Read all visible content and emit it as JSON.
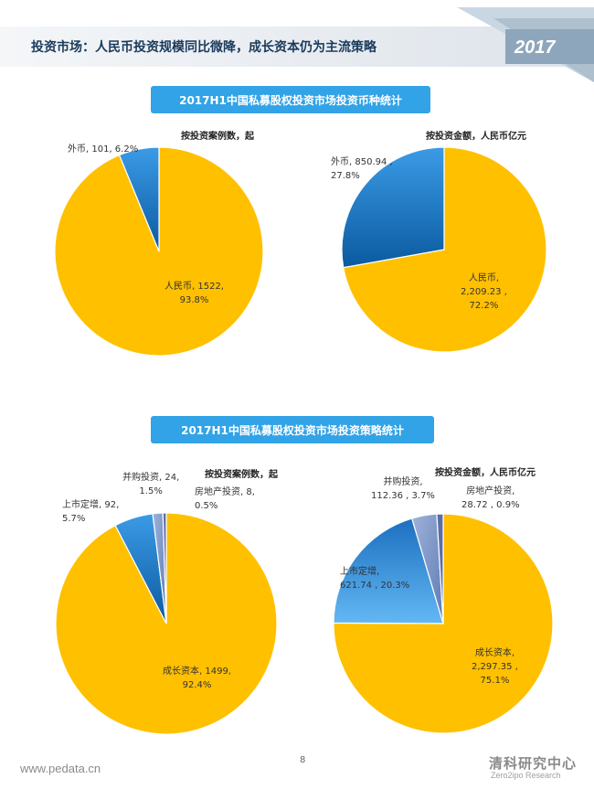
{
  "header": {
    "title": "投资市场：人民币投资规模同比微降，成长资本仍为主流策略",
    "year": "2017"
  },
  "section1": {
    "banner": "2017H1中国私募股权投资市场投资币种统计"
  },
  "section2": {
    "banner": "2017H1中国私募股权投资市场投资策略统计"
  },
  "colors": {
    "yellow": "#ffc000",
    "blue_dark": "#0b5fa5",
    "blue_light": "#4aa6ea",
    "slate": "#7f97c9",
    "banner": "#32a3e6"
  },
  "chart_data": [
    {
      "type": "pie",
      "title": "按投资案例数，起",
      "series": [
        {
          "values": [
            1522,
            101
          ]
        }
      ],
      "categories": [
        "人民币",
        "外币"
      ],
      "labels": [
        {
          "lines": [
            "人民币, 1522,",
            "93.8%"
          ]
        },
        {
          "lines": [
            "外币, 101, 6.2%"
          ]
        }
      ]
    },
    {
      "type": "pie",
      "title": "按投资金额，人民币亿元",
      "series": [
        {
          "values": [
            2209.23,
            850.94
          ]
        }
      ],
      "categories": [
        "人民币",
        "外币"
      ],
      "labels": [
        {
          "lines": [
            "人民币,",
            "2,209.23 ,",
            "72.2%"
          ]
        },
        {
          "lines": [
            "外币,  850.94 ,",
            "27.8%"
          ]
        }
      ]
    },
    {
      "type": "pie",
      "title": "按投资案例数，起",
      "series": [
        {
          "values": [
            1499,
            92,
            24,
            8
          ]
        }
      ],
      "categories": [
        "成长资本",
        "上市定增",
        "并购投资",
        "房地产投资"
      ],
      "labels": [
        {
          "lines": [
            "成长资本, 1499,",
            "92.4%"
          ]
        },
        {
          "lines": [
            "上市定增, 92,",
            "5.7%"
          ]
        },
        {
          "lines": [
            "并购投资, 24,",
            "1.5%"
          ]
        },
        {
          "lines": [
            "房地产投资, 8,",
            "0.5%"
          ]
        }
      ]
    },
    {
      "type": "pie",
      "title": "按投资金额，人民币亿元",
      "series": [
        {
          "values": [
            2297.35,
            621.74,
            112.36,
            28.72
          ]
        }
      ],
      "categories": [
        "成长资本",
        "上市定增",
        "并购投资",
        "房地产投资"
      ],
      "labels": [
        {
          "lines": [
            "成长资本,",
            "2,297.35 ,",
            "75.1%"
          ]
        },
        {
          "lines": [
            "上市定增,",
            "621.74 , 20.3%"
          ]
        },
        {
          "lines": [
            "并购投资,",
            "112.36 , 3.7%"
          ]
        },
        {
          "lines": [
            "房地产投资,",
            "28.72 , 0.9%"
          ]
        }
      ]
    }
  ],
  "footer": {
    "url": "www.pedata.cn",
    "page_number": "8",
    "brand": "清科研究中心",
    "brand_sub": "Zero2ipo Research"
  }
}
